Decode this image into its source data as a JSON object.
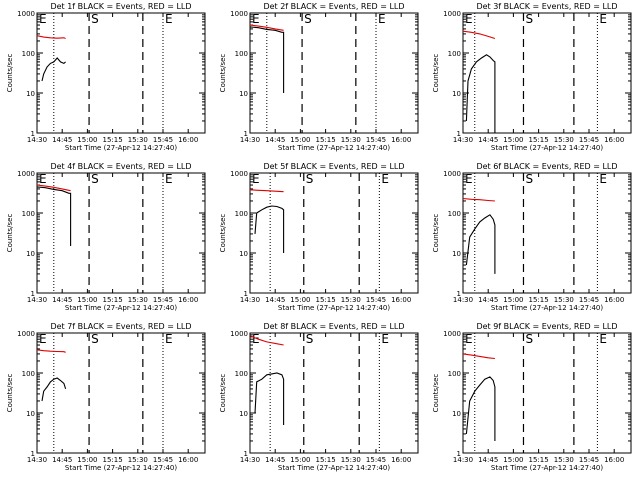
{
  "figure": {
    "panel_title_suffix": "BLACK = Events, RED = LLD",
    "xlabel": "Start Time (27-Apr-12 14:27:40)",
    "ylabel": "Counts/sec",
    "marker_labels": [
      "E",
      "S",
      "E"
    ],
    "colors": {
      "events": "#000000",
      "lld": "#e00000",
      "axes": "#000000"
    }
  },
  "chart_data": [
    {
      "type": "line",
      "title": "Det 1f BLACK = Events, RED = LLD",
      "xlabel": "Start Time (27-Apr-12 14:27:40)",
      "ylabel": "Counts/sec",
      "y_scale": "log",
      "ylim": [
        1,
        1000
      ],
      "x_ticks": [
        "14:30",
        "14:45",
        "15:00",
        "15:15",
        "15:30",
        "15:45",
        "16:00"
      ],
      "y_ticks": [
        "1",
        "10",
        "100",
        "1000"
      ],
      "dashed_lines_x": [
        "15:01",
        "15:33"
      ],
      "dotted_lines_x": [
        "14:40",
        "15:45"
      ],
      "series": [
        {
          "name": "Events",
          "color": "#000000",
          "x": [
            "14:33",
            "14:34",
            "14:36",
            "14:38",
            "14:40",
            "14:42",
            "14:44",
            "14:46",
            "14:47"
          ],
          "values": [
            20,
            30,
            45,
            55,
            60,
            75,
            60,
            55,
            60
          ]
        },
        {
          "name": "LLD",
          "color": "#e00000",
          "x": [
            "14:30",
            "14:34",
            "14:38",
            "14:42",
            "14:46",
            "14:47"
          ],
          "values": [
            270,
            250,
            240,
            235,
            240,
            230
          ]
        }
      ]
    },
    {
      "type": "line",
      "title": "Det 2f BLACK = Events, RED = LLD",
      "xlabel": "Start Time (27-Apr-12 14:27:40)",
      "ylabel": "Counts/sec",
      "y_scale": "log",
      "ylim": [
        1,
        1000
      ],
      "x_ticks": [
        "14:30",
        "14:45",
        "15:00",
        "15:15",
        "15:30",
        "15:45",
        "16:00"
      ],
      "y_ticks": [
        "1",
        "10",
        "100",
        "1000"
      ],
      "dashed_lines_x": [
        "15:01",
        "15:33"
      ],
      "dotted_lines_x": [
        "14:40",
        "15:45"
      ],
      "series": [
        {
          "name": "Events",
          "color": "#000000",
          "x": [
            "14:30",
            "14:35",
            "14:40",
            "14:45",
            "14:49",
            "14:50",
            "14:50"
          ],
          "values": [
            450,
            430,
            390,
            370,
            330,
            330,
            10
          ]
        },
        {
          "name": "LLD",
          "color": "#e00000",
          "x": [
            "14:30",
            "14:35",
            "14:40",
            "14:45",
            "14:50"
          ],
          "values": [
            500,
            470,
            440,
            400,
            370
          ]
        }
      ]
    },
    {
      "type": "line",
      "title": "Det 3f BLACK = Events, RED = LLD",
      "xlabel": "Start Time (27-Apr-12 14:27:40)",
      "ylabel": "Counts/sec",
      "y_scale": "log",
      "ylim": [
        1,
        1000
      ],
      "x_ticks": [
        "14:30",
        "14:45",
        "15:00",
        "15:15",
        "15:30",
        "15:45",
        "16:00"
      ],
      "y_ticks": [
        "1",
        "10",
        "100",
        "1000"
      ],
      "dashed_lines_x": [
        "15:06",
        "15:36"
      ],
      "dotted_lines_x": [
        "14:37",
        "15:50"
      ],
      "series": [
        {
          "name": "Events",
          "color": "#000000",
          "x": [
            "14:32",
            "14:33",
            "14:35",
            "14:38",
            "14:41",
            "14:44",
            "14:46",
            "14:48",
            "14:49",
            "14:49"
          ],
          "values": [
            2,
            20,
            40,
            60,
            75,
            90,
            80,
            65,
            60,
            1
          ]
        },
        {
          "name": "LLD",
          "color": "#e00000",
          "x": [
            "14:30",
            "14:35",
            "14:40",
            "14:45",
            "14:49"
          ],
          "values": [
            350,
            330,
            300,
            260,
            230
          ]
        }
      ]
    },
    {
      "type": "line",
      "title": "Det 4f BLACK = Events, RED = LLD",
      "xlabel": "Start Time (27-Apr-12 14:27:40)",
      "ylabel": "Counts/sec",
      "y_scale": "log",
      "ylim": [
        1,
        1000
      ],
      "x_ticks": [
        "14:30",
        "14:45",
        "15:00",
        "15:15",
        "15:30",
        "15:45",
        "16:00"
      ],
      "y_ticks": [
        "1",
        "10",
        "100",
        "1000"
      ],
      "dashed_lines_x": [
        "15:01",
        "15:33"
      ],
      "dotted_lines_x": [
        "14:40",
        "15:45"
      ],
      "series": [
        {
          "name": "Events",
          "color": "#000000",
          "x": [
            "14:30",
            "14:35",
            "14:40",
            "14:45",
            "14:49",
            "14:50",
            "14:50"
          ],
          "values": [
            450,
            430,
            390,
            360,
            310,
            310,
            15
          ]
        },
        {
          "name": "LLD",
          "color": "#e00000",
          "x": [
            "14:30",
            "14:35",
            "14:40",
            "14:45",
            "14:50"
          ],
          "values": [
            500,
            470,
            440,
            400,
            360
          ]
        }
      ]
    },
    {
      "type": "line",
      "title": "Det 5f BLACK = Events, RED = LLD",
      "xlabel": "Start Time (27-Apr-12 14:27:40)",
      "ylabel": "Counts/sec",
      "y_scale": "log",
      "ylim": [
        1,
        1000
      ],
      "x_ticks": [
        "14:30",
        "14:45",
        "15:00",
        "15:15",
        "15:30",
        "15:45",
        "16:00"
      ],
      "y_ticks": [
        "1",
        "10",
        "100",
        "1000"
      ],
      "dashed_lines_x": [
        "15:02",
        "15:35"
      ],
      "dotted_lines_x": [
        "14:42",
        "15:47"
      ],
      "series": [
        {
          "name": "Events",
          "color": "#000000",
          "x": [
            "14:33",
            "14:34",
            "14:37",
            "14:40",
            "14:43",
            "14:46",
            "14:49",
            "14:50",
            "14:50"
          ],
          "values": [
            30,
            100,
            120,
            140,
            150,
            145,
            130,
            120,
            10
          ]
        },
        {
          "name": "LLD",
          "color": "#e00000",
          "x": [
            "14:30",
            "14:35",
            "14:40",
            "14:45",
            "14:50"
          ],
          "values": [
            380,
            370,
            360,
            350,
            340
          ]
        }
      ]
    },
    {
      "type": "line",
      "title": "Det 6f BLACK = Events, RED = LLD",
      "xlabel": "Start Time (27-Apr-12 14:27:40)",
      "ylabel": "Counts/sec",
      "y_scale": "log",
      "ylim": [
        1,
        1000
      ],
      "x_ticks": [
        "14:30",
        "14:45",
        "15:00",
        "15:15",
        "15:30",
        "15:45",
        "16:00"
      ],
      "y_ticks": [
        "1",
        "10",
        "100",
        "1000"
      ],
      "dashed_lines_x": [
        "15:06",
        "15:36"
      ],
      "dotted_lines_x": [
        "14:37",
        "15:50"
      ],
      "series": [
        {
          "name": "Events",
          "color": "#000000",
          "x": [
            "14:32",
            "14:34",
            "14:37",
            "14:40",
            "14:43",
            "14:46",
            "14:48",
            "14:49",
            "14:49"
          ],
          "values": [
            5,
            25,
            40,
            60,
            75,
            90,
            70,
            50,
            3
          ]
        },
        {
          "name": "LLD",
          "color": "#e00000",
          "x": [
            "14:30",
            "14:35",
            "14:40",
            "14:45",
            "14:49"
          ],
          "values": [
            230,
            220,
            215,
            205,
            200
          ]
        }
      ]
    },
    {
      "type": "line",
      "title": "Det 7f BLACK = Events, RED = LLD",
      "xlabel": "Start Time (27-Apr-12 14:27:40)",
      "ylabel": "Counts/sec",
      "y_scale": "log",
      "ylim": [
        1,
        1000
      ],
      "x_ticks": [
        "14:30",
        "14:45",
        "15:00",
        "15:15",
        "15:30",
        "15:45",
        "16:00"
      ],
      "y_ticks": [
        "1",
        "10",
        "100",
        "1000"
      ],
      "dashed_lines_x": [
        "15:01",
        "15:33"
      ],
      "dotted_lines_x": [
        "14:40",
        "15:45"
      ],
      "series": [
        {
          "name": "Events",
          "color": "#000000",
          "x": [
            "14:33",
            "14:34",
            "14:36",
            "14:38",
            "14:40",
            "14:42",
            "14:44",
            "14:46",
            "14:47"
          ],
          "values": [
            20,
            35,
            45,
            60,
            70,
            75,
            65,
            55,
            40
          ]
        },
        {
          "name": "LLD",
          "color": "#e00000",
          "x": [
            "14:30",
            "14:34",
            "14:38",
            "14:42",
            "14:46",
            "14:47"
          ],
          "values": [
            380,
            360,
            350,
            345,
            340,
            330
          ]
        }
      ]
    },
    {
      "type": "line",
      "title": "Det 8f BLACK = Events, RED = LLD",
      "xlabel": "Start Time (27-Apr-12 14:27:40)",
      "ylabel": "Counts/sec",
      "y_scale": "log",
      "ylim": [
        1,
        1000
      ],
      "x_ticks": [
        "14:30",
        "14:45",
        "15:00",
        "15:15",
        "15:30",
        "15:45",
        "16:00"
      ],
      "y_ticks": [
        "1",
        "10",
        "100",
        "1000"
      ],
      "dashed_lines_x": [
        "15:02",
        "15:35"
      ],
      "dotted_lines_x": [
        "14:42",
        "15:47"
      ],
      "series": [
        {
          "name": "Events",
          "color": "#000000",
          "x": [
            "14:33",
            "14:34",
            "14:37",
            "14:40",
            "14:43",
            "14:46",
            "14:49",
            "14:50",
            "14:50"
          ],
          "values": [
            10,
            60,
            70,
            90,
            95,
            100,
            90,
            70,
            5
          ]
        },
        {
          "name": "LLD",
          "color": "#e00000",
          "x": [
            "14:30",
            "14:35",
            "14:40",
            "14:45",
            "14:50"
          ],
          "values": [
            850,
            700,
            600,
            550,
            500
          ]
        }
      ]
    },
    {
      "type": "line",
      "title": "Det 9f BLACK = Events, RED = LLD",
      "xlabel": "Start Time (27-Apr-12 14:27:40)",
      "ylabel": "Counts/sec",
      "y_scale": "log",
      "ylim": [
        1,
        1000
      ],
      "x_ticks": [
        "14:30",
        "14:45",
        "15:00",
        "15:15",
        "15:30",
        "15:45",
        "16:00"
      ],
      "y_ticks": [
        "1",
        "10",
        "100",
        "1000"
      ],
      "dashed_lines_x": [
        "15:06",
        "15:36"
      ],
      "dotted_lines_x": [
        "14:37",
        "15:50"
      ],
      "series": [
        {
          "name": "Events",
          "color": "#000000",
          "x": [
            "14:32",
            "14:34",
            "14:37",
            "14:40",
            "14:43",
            "14:46",
            "14:48",
            "14:49",
            "14:49"
          ],
          "values": [
            3,
            20,
            35,
            50,
            70,
            80,
            65,
            45,
            2
          ]
        },
        {
          "name": "LLD",
          "color": "#e00000",
          "x": [
            "14:30",
            "14:35",
            "14:40",
            "14:45",
            "14:49"
          ],
          "values": [
            300,
            280,
            260,
            240,
            230
          ]
        }
      ]
    }
  ]
}
